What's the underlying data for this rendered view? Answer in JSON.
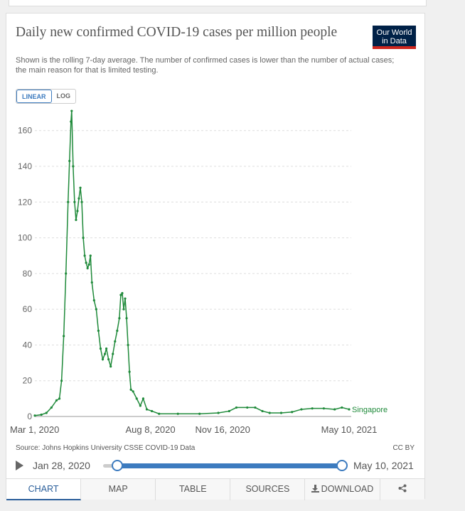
{
  "title": "Daily new confirmed COVID-19 cases per million people",
  "subtitle": "Shown is the rolling 7-day average. The number of confirmed cases is lower than the number of actual cases; the main reason for that is limited testing.",
  "logo": {
    "line1": "Our World",
    "line2": "in Data"
  },
  "scale_toggle": {
    "linear": "LINEAR",
    "log": "LOG",
    "selected": "LINEAR"
  },
  "source": "Source: Johns Hopkins University CSSE COVID-19 Data",
  "license": "CC BY",
  "timeline": {
    "start": "Jan 28, 2020",
    "end": "May 10, 2021"
  },
  "tabs": {
    "chart": "CHART",
    "map": "MAP",
    "table": "TABLE",
    "sources": "SOURCES",
    "download": "DOWNLOAD"
  },
  "colors": {
    "series": "#1f8a3a",
    "accent": "#3c7bbf",
    "logo_bg": "#002147",
    "logo_bar": "#ce261e"
  },
  "chart_data": {
    "type": "line",
    "x_type": "date",
    "ylim": [
      0,
      175
    ],
    "yticks": [
      0,
      20,
      40,
      60,
      80,
      100,
      120,
      140,
      160
    ],
    "xticks": [
      "Mar 1, 2020",
      "Aug 8, 2020",
      "Nov 16, 2020",
      "May 10, 2021"
    ],
    "xrange": [
      "2020-03-01",
      "2021-05-10"
    ],
    "grid": "horizontal dashed",
    "series": [
      {
        "name": "Singapore",
        "points": [
          [
            "2020-03-01",
            0.5
          ],
          [
            "2020-03-10",
            1
          ],
          [
            "2020-03-17",
            2
          ],
          [
            "2020-03-24",
            5
          ],
          [
            "2020-03-31",
            9
          ],
          [
            "2020-04-04",
            10
          ],
          [
            "2020-04-07",
            20
          ],
          [
            "2020-04-10",
            45
          ],
          [
            "2020-04-13",
            80
          ],
          [
            "2020-04-16",
            120
          ],
          [
            "2020-04-18",
            143
          ],
          [
            "2020-04-20",
            165
          ],
          [
            "2020-04-21",
            171
          ],
          [
            "2020-04-23",
            140
          ],
          [
            "2020-04-25",
            120
          ],
          [
            "2020-04-27",
            110
          ],
          [
            "2020-04-29",
            115
          ],
          [
            "2020-05-01",
            122
          ],
          [
            "2020-05-03",
            128
          ],
          [
            "2020-05-05",
            120
          ],
          [
            "2020-05-07",
            100
          ],
          [
            "2020-05-09",
            90
          ],
          [
            "2020-05-11",
            86
          ],
          [
            "2020-05-13",
            83
          ],
          [
            "2020-05-15",
            85
          ],
          [
            "2020-05-17",
            90
          ],
          [
            "2020-05-19",
            75
          ],
          [
            "2020-05-22",
            65
          ],
          [
            "2020-05-25",
            60
          ],
          [
            "2020-05-28",
            48
          ],
          [
            "2020-05-31",
            38
          ],
          [
            "2020-06-03",
            32
          ],
          [
            "2020-06-06",
            35
          ],
          [
            "2020-06-08",
            38
          ],
          [
            "2020-06-11",
            32
          ],
          [
            "2020-06-14",
            28
          ],
          [
            "2020-06-17",
            35
          ],
          [
            "2020-06-20",
            42
          ],
          [
            "2020-06-23",
            48
          ],
          [
            "2020-06-26",
            55
          ],
          [
            "2020-06-28",
            68
          ],
          [
            "2020-06-30",
            69
          ],
          [
            "2020-07-02",
            60
          ],
          [
            "2020-07-04",
            66
          ],
          [
            "2020-07-06",
            55
          ],
          [
            "2020-07-08",
            40
          ],
          [
            "2020-07-10",
            25
          ],
          [
            "2020-07-12",
            15
          ],
          [
            "2020-07-15",
            14
          ],
          [
            "2020-07-20",
            10
          ],
          [
            "2020-07-25",
            6
          ],
          [
            "2020-07-29",
            10
          ],
          [
            "2020-08-03",
            4
          ],
          [
            "2020-08-10",
            3
          ],
          [
            "2020-08-20",
            1.5
          ],
          [
            "2020-09-15",
            1.5
          ],
          [
            "2020-10-15",
            1.5
          ],
          [
            "2020-11-10",
            2
          ],
          [
            "2020-11-25",
            3
          ],
          [
            "2020-12-05",
            5
          ],
          [
            "2020-12-20",
            5
          ],
          [
            "2020-12-31",
            5
          ],
          [
            "2021-01-10",
            3
          ],
          [
            "2021-01-20",
            2
          ],
          [
            "2021-02-05",
            2
          ],
          [
            "2021-02-20",
            2.5
          ],
          [
            "2021-03-05",
            4
          ],
          [
            "2021-03-20",
            4.5
          ],
          [
            "2021-04-05",
            4.5
          ],
          [
            "2021-04-20",
            4
          ],
          [
            "2021-04-30",
            5
          ],
          [
            "2021-05-10",
            4
          ]
        ]
      }
    ]
  }
}
